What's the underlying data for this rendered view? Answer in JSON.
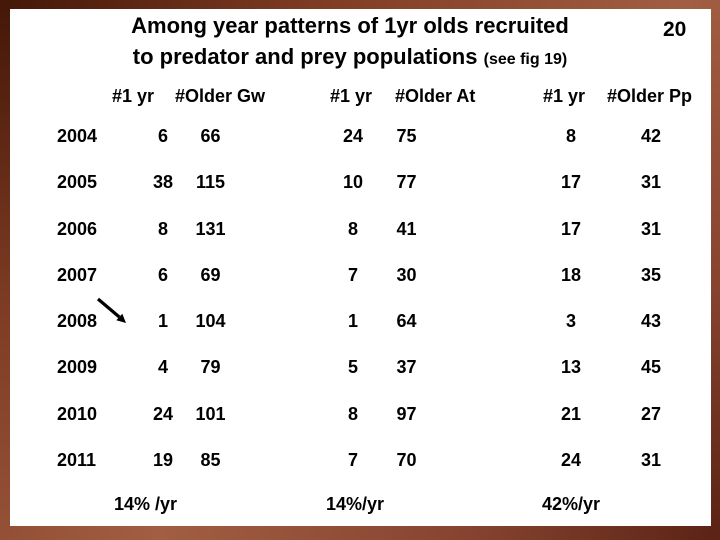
{
  "page_number": "20",
  "title": {
    "line1": "Among year patterns of 1yr olds recruited",
    "line2": "to predator and prey populations",
    "line2_note": "(see fig 19)"
  },
  "table": {
    "headers": [
      "#1 yr",
      "#Older Gw",
      "#1 yr",
      "#Older At",
      "#1 yr",
      "#Older Pp"
    ],
    "rows": [
      {
        "year": "2004",
        "values": [
          "6",
          "66",
          "24",
          "75",
          "8",
          "42"
        ]
      },
      {
        "year": "2005",
        "values": [
          "38",
          "115",
          "10",
          "77",
          "17",
          "31"
        ]
      },
      {
        "year": "2006",
        "values": [
          "8",
          "131",
          "8",
          "41",
          "17",
          "31"
        ]
      },
      {
        "year": "2007",
        "values": [
          "6",
          "69",
          "7",
          "30",
          "18",
          "35"
        ]
      },
      {
        "year": "2008",
        "values": [
          "1",
          "104",
          "1",
          "64",
          "3",
          "43"
        ]
      },
      {
        "year": "2009",
        "values": [
          "4",
          "79",
          "5",
          "37",
          "13",
          "45"
        ]
      },
      {
        "year": "2010",
        "values": [
          "24",
          "101",
          "8",
          "97",
          "21",
          "27"
        ]
      },
      {
        "year": "2011",
        "values": [
          "19",
          "85",
          "7",
          "70",
          "24",
          "31"
        ]
      }
    ],
    "footer_rates": [
      "14% /yr",
      "14%/yr",
      "42%/yr"
    ]
  },
  "icons": {
    "annotation_arrow": "down-right-arrow"
  },
  "colors": {
    "background": "#ffffff",
    "text": "#000000",
    "frame_dark": "#451808",
    "frame_mid": "#9d5b41"
  }
}
